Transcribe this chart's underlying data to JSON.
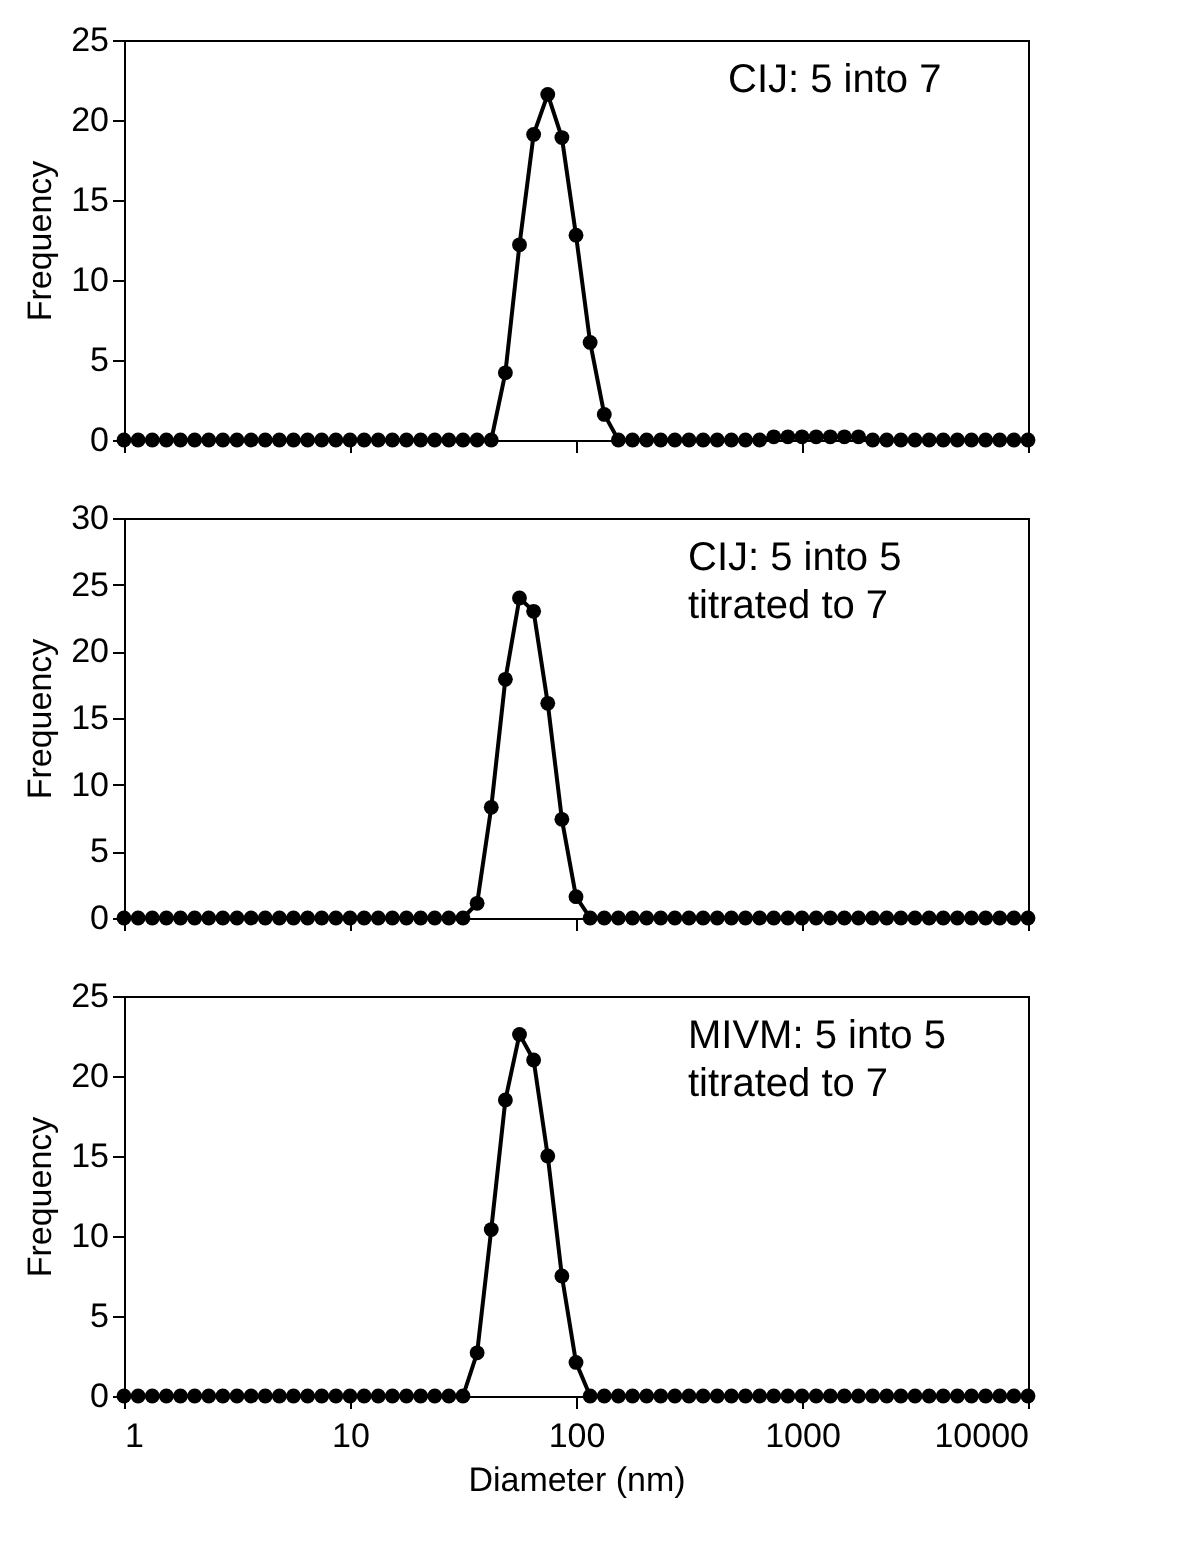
{
  "chart_data": [
    {
      "type": "line",
      "xlim": [
        1,
        10000
      ],
      "xticks": [
        1,
        10,
        100,
        1000,
        10000
      ],
      "ylim": [
        0,
        25
      ],
      "yticks": [
        0,
        5,
        10,
        15,
        20,
        25
      ],
      "log": "x",
      "tick_labels": "y",
      "ylabel": "Frequency",
      "marker": "circle",
      "line_style": "solid",
      "annotations": [
        "CIJ: 5 into 7"
      ],
      "x": [
        1,
        1.155,
        1.334,
        1.54,
        1.778,
        2.054,
        2.371,
        2.738,
        3.162,
        3.652,
        4.217,
        4.87,
        5.623,
        6.494,
        7.499,
        8.66,
        10,
        11.55,
        13.34,
        15.4,
        17.78,
        20.54,
        23.71,
        27.38,
        31.62,
        36.52,
        42.17,
        48.7,
        56.23,
        64.94,
        74.99,
        86.6,
        100,
        115.5,
        133.4,
        154,
        177.8,
        205.4,
        237.1,
        273.8,
        316.2,
        365.2,
        421.7,
        487,
        562.3,
        649.4,
        749.9,
        866,
        1000,
        1155,
        1334,
        1540,
        1778,
        2054,
        2371,
        2738,
        3162,
        3652,
        4217,
        4870,
        5623,
        6494,
        7499,
        8660,
        10000
      ],
      "series": [
        {
          "color": "#000000",
          "values": [
            0,
            0,
            0,
            0,
            0,
            0,
            0,
            0,
            0,
            0,
            0,
            0,
            0,
            0,
            0,
            0,
            0,
            0,
            0,
            0,
            0,
            0,
            0,
            0,
            0,
            0,
            0,
            4.2,
            12.2,
            19.1,
            21.6,
            18.9,
            12.8,
            6.1,
            1.6,
            0,
            0,
            0,
            0,
            0,
            0,
            0,
            0,
            0,
            0,
            0,
            0.2,
            0.2,
            0.2,
            0.2,
            0.2,
            0.2,
            0.2,
            0,
            0,
            0,
            0,
            0,
            0,
            0,
            0,
            0,
            0,
            0,
            0
          ]
        }
      ]
    },
    {
      "type": "line",
      "xlim": [
        1,
        10000
      ],
      "xticks": [
        1,
        10,
        100,
        1000,
        10000
      ],
      "ylim": [
        0,
        30
      ],
      "yticks": [
        0,
        5,
        10,
        15,
        20,
        25,
        30
      ],
      "log": "x",
      "tick_labels": "y",
      "ylabel": "Frequency",
      "marker": "circle",
      "line_style": "solid",
      "annotations": [
        "CIJ: 5 into 5\ntitrated to 7"
      ],
      "x": [
        1,
        1.155,
        1.334,
        1.54,
        1.778,
        2.054,
        2.371,
        2.738,
        3.162,
        3.652,
        4.217,
        4.87,
        5.623,
        6.494,
        7.499,
        8.66,
        10,
        11.55,
        13.34,
        15.4,
        17.78,
        20.54,
        23.71,
        27.38,
        31.62,
        36.52,
        42.17,
        48.7,
        56.23,
        64.94,
        74.99,
        86.6,
        100,
        115.5,
        133.4,
        154,
        177.8,
        205.4,
        237.1,
        273.8,
        316.2,
        365.2,
        421.7,
        487,
        562.3,
        649.4,
        749.9,
        866,
        1000,
        1155,
        1334,
        1540,
        1778,
        2054,
        2371,
        2738,
        3162,
        3652,
        4217,
        4870,
        5623,
        6494,
        7499,
        8660,
        10000
      ],
      "series": [
        {
          "color": "#000000",
          "values": [
            0,
            0,
            0,
            0,
            0,
            0,
            0,
            0,
            0,
            0,
            0,
            0,
            0,
            0,
            0,
            0,
            0,
            0,
            0,
            0,
            0,
            0,
            0,
            0,
            0,
            1.1,
            8.3,
            17.9,
            24.0,
            23.0,
            16.1,
            7.4,
            1.6,
            0,
            0,
            0,
            0,
            0,
            0,
            0,
            0,
            0,
            0,
            0,
            0,
            0,
            0,
            0,
            0,
            0,
            0,
            0,
            0,
            0,
            0,
            0,
            0,
            0,
            0,
            0,
            0,
            0,
            0,
            0,
            0
          ]
        }
      ]
    },
    {
      "type": "line",
      "xlim": [
        1,
        10000
      ],
      "xticks": [
        1,
        10,
        100,
        1000,
        10000
      ],
      "ylim": [
        0,
        25
      ],
      "yticks": [
        0,
        5,
        10,
        15,
        20,
        25
      ],
      "log": "x",
      "xlabel": "Diameter (nm)",
      "ylabel": "Frequency",
      "marker": "circle",
      "line_style": "solid",
      "annotations": [
        "MIVM: 5 into 5\ntitrated to 7"
      ],
      "x": [
        1,
        1.155,
        1.334,
        1.54,
        1.778,
        2.054,
        2.371,
        2.738,
        3.162,
        3.652,
        4.217,
        4.87,
        5.623,
        6.494,
        7.499,
        8.66,
        10,
        11.55,
        13.34,
        15.4,
        17.78,
        20.54,
        23.71,
        27.38,
        31.62,
        36.52,
        42.17,
        48.7,
        56.23,
        64.94,
        74.99,
        86.6,
        100,
        115.5,
        133.4,
        154,
        177.8,
        205.4,
        237.1,
        273.8,
        316.2,
        365.2,
        421.7,
        487,
        562.3,
        649.4,
        749.9,
        866,
        1000,
        1155,
        1334,
        1540,
        1778,
        2054,
        2371,
        2738,
        3162,
        3652,
        4217,
        4870,
        5623,
        6494,
        7499,
        8660,
        10000
      ],
      "series": [
        {
          "color": "#000000",
          "values": [
            0,
            0,
            0,
            0,
            0,
            0,
            0,
            0,
            0,
            0,
            0,
            0,
            0,
            0,
            0,
            0,
            0,
            0,
            0,
            0,
            0,
            0,
            0,
            0,
            0,
            2.7,
            10.4,
            18.5,
            22.6,
            21.0,
            15.0,
            7.5,
            2.1,
            0,
            0,
            0,
            0,
            0,
            0,
            0,
            0,
            0,
            0,
            0,
            0,
            0,
            0,
            0,
            0,
            0,
            0,
            0,
            0,
            0,
            0,
            0,
            0,
            0,
            0,
            0,
            0,
            0,
            0,
            0,
            0
          ]
        }
      ]
    }
  ]
}
